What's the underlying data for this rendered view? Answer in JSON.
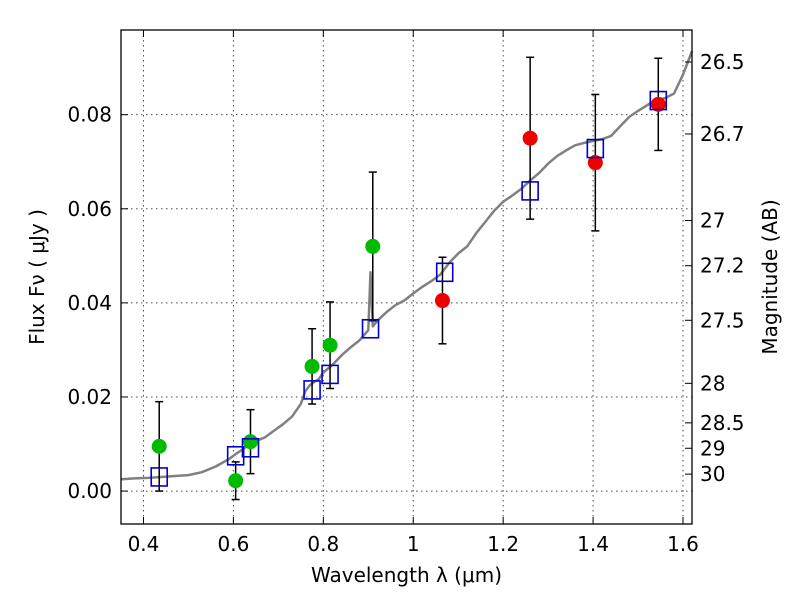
{
  "chart_data": {
    "type": "scatter",
    "title": "",
    "xlabel": "Wavelength  λ (μm)",
    "ylabel": "Flux  Fν  ( μJy )",
    "ylabel_right": "Magnitude (AB)",
    "xlim": [
      0.35,
      1.62
    ],
    "ylim": [
      -0.007,
      0.098
    ],
    "grid": true,
    "x_ticks": [
      {
        "value": 0.4,
        "label": "0.4"
      },
      {
        "value": 0.6,
        "label": "0.6"
      },
      {
        "value": 0.8,
        "label": "0.8"
      },
      {
        "value": 1.0,
        "label": "1"
      },
      {
        "value": 1.2,
        "label": "1.2"
      },
      {
        "value": 1.4,
        "label": "1.4"
      },
      {
        "value": 1.6,
        "label": "1.6"
      }
    ],
    "y_ticks": [
      {
        "value": 0.0,
        "label": "0.00"
      },
      {
        "value": 0.02,
        "label": "0.02"
      },
      {
        "value": 0.04,
        "label": "0.04"
      },
      {
        "value": 0.06,
        "label": "0.06"
      },
      {
        "value": 0.08,
        "label": "0.08"
      }
    ],
    "right_ticks": [
      {
        "label": "26.5",
        "flux": 0.0912
      },
      {
        "label": "26.7",
        "flux": 0.0759
      },
      {
        "label": "27",
        "flux": 0.0575
      },
      {
        "label": "27.2",
        "flux": 0.0479
      },
      {
        "label": "27.5",
        "flux": 0.0363
      },
      {
        "label": "28",
        "flux": 0.0229
      },
      {
        "label": "28.5",
        "flux": 0.0145
      },
      {
        "label": "29",
        "flux": 0.0091
      },
      {
        "label": "30",
        "flux": 0.0036
      }
    ],
    "colors": {
      "model_line": "#808080",
      "model_points": "#0000cc",
      "green_points": "#00bb00",
      "red_points": "#ee0000",
      "errorbar": "#000000"
    },
    "model_line": {
      "x": [
        0.35,
        0.38,
        0.41,
        0.44,
        0.47,
        0.5,
        0.53,
        0.56,
        0.59,
        0.6,
        0.61,
        0.62,
        0.63,
        0.65,
        0.67,
        0.69,
        0.71,
        0.73,
        0.75,
        0.76,
        0.77,
        0.78,
        0.79,
        0.8,
        0.82,
        0.84,
        0.86,
        0.88,
        0.9,
        0.905,
        0.91,
        0.92,
        0.94,
        0.96,
        0.98,
        1.0,
        1.02,
        1.04,
        1.06,
        1.08,
        1.1,
        1.12,
        1.14,
        1.16,
        1.18,
        1.2,
        1.22,
        1.24,
        1.26,
        1.28,
        1.3,
        1.32,
        1.34,
        1.36,
        1.38,
        1.4,
        1.42,
        1.44,
        1.46,
        1.48,
        1.5,
        1.52,
        1.54,
        1.56,
        1.58,
        1.6,
        1.62
      ],
      "y": [
        0.0025,
        0.0027,
        0.0028,
        0.003,
        0.0032,
        0.0034,
        0.004,
        0.0052,
        0.0068,
        0.0075,
        0.0082,
        0.0088,
        0.0096,
        0.0106,
        0.0114,
        0.0128,
        0.0142,
        0.0158,
        0.0185,
        0.0212,
        0.0225,
        0.0232,
        0.0238,
        0.0252,
        0.0268,
        0.0288,
        0.0305,
        0.032,
        0.0342,
        0.0465,
        0.035,
        0.0362,
        0.038,
        0.0395,
        0.0405,
        0.042,
        0.0434,
        0.0446,
        0.046,
        0.0485,
        0.0505,
        0.052,
        0.0548,
        0.0572,
        0.0596,
        0.0615,
        0.0628,
        0.0642,
        0.066,
        0.0676,
        0.0696,
        0.0712,
        0.0724,
        0.0735,
        0.074,
        0.0744,
        0.0748,
        0.0755,
        0.0775,
        0.0795,
        0.0808,
        0.082,
        0.0832,
        0.0835,
        0.0845,
        0.0885,
        0.0935
      ]
    },
    "series": [
      {
        "marker": "square",
        "x": [
          0.435,
          0.605,
          0.638,
          0.775,
          0.815,
          0.905,
          1.07,
          1.26,
          1.405,
          1.545
        ],
        "y": [
          0.003,
          0.0075,
          0.0092,
          0.0215,
          0.0248,
          0.0345,
          0.0465,
          0.0638,
          0.0728,
          0.083
        ]
      },
      {
        "marker": "circle",
        "x": [
          0.435,
          0.605,
          0.638,
          0.775,
          0.815,
          0.91
        ],
        "y": [
          0.0095,
          0.0022,
          0.0105,
          0.0265,
          0.031,
          0.052
        ],
        "err": [
          0.0095,
          0.004,
          0.0068,
          0.008,
          0.0092,
          0.0158
        ]
      },
      {
        "marker": "circle",
        "x": [
          1.065,
          1.26,
          1.405,
          1.545
        ],
        "y": [
          0.0405,
          0.075,
          0.0698,
          0.0822
        ],
        "err": [
          0.0092,
          0.0172,
          0.0145,
          0.0098
        ]
      }
    ]
  }
}
